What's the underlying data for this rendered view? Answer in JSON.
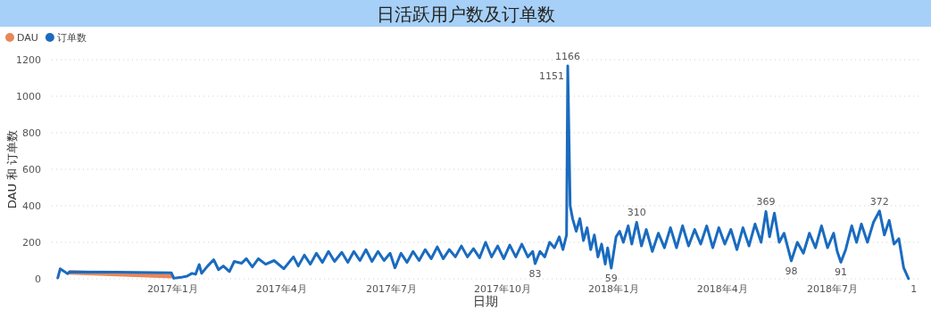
{
  "chart_data": {
    "type": "line",
    "title": "日活跃用户数及订单数",
    "xlabel": "日期",
    "ylabel": "DAU 和 订单数",
    "legend": "top left",
    "grid": "y",
    "xlim": [
      "2016-09-23",
      "2018-09-11"
    ],
    "ylim": [
      0,
      1200
    ],
    "xticks": [
      {
        "value": "2017-01-01",
        "label": "2017年1月"
      },
      {
        "value": "2017-04-01",
        "label": "2017年4月"
      },
      {
        "value": "2017-07-01",
        "label": "2017年7月"
      },
      {
        "value": "2017-10-01",
        "label": "2017年10月"
      },
      {
        "value": "2018-01-01",
        "label": "2018年1月"
      },
      {
        "value": "2018-04-01",
        "label": "2018年4月"
      },
      {
        "value": "2018-07-01",
        "label": "2018年7月"
      }
    ],
    "yticks": [
      0,
      200,
      400,
      600,
      800,
      1000,
      1200
    ],
    "series": [
      {
        "name": "DAU",
        "color": "#e8875a",
        "x": [
          "2016-10-08",
          "2016-12-31"
        ],
        "values": [
          35,
          15
        ]
      },
      {
        "name": "订单数",
        "color": "#1a6bbf",
        "x": [
          "2016-09-28",
          "2016-09-30",
          "2016-10-03",
          "2016-10-06",
          "2016-10-08",
          "2016-11-15",
          "2016-12-31",
          "2017-01-02",
          "2017-01-08",
          "2017-01-13",
          "2017-01-17",
          "2017-01-20",
          "2017-01-23",
          "2017-01-25",
          "2017-01-30",
          "2017-02-04",
          "2017-02-08",
          "2017-02-12",
          "2017-02-17",
          "2017-02-21",
          "2017-02-27",
          "2017-03-03",
          "2017-03-08",
          "2017-03-13",
          "2017-03-19",
          "2017-03-26",
          "2017-04-03",
          "2017-04-11",
          "2017-04-15",
          "2017-04-20",
          "2017-04-25",
          "2017-04-30",
          "2017-05-05",
          "2017-05-10",
          "2017-05-15",
          "2017-05-21",
          "2017-05-26",
          "2017-05-31",
          "2017-06-05",
          "2017-06-10",
          "2017-06-15",
          "2017-06-20",
          "2017-06-25",
          "2017-06-30",
          "2017-07-04",
          "2017-07-09",
          "2017-07-14",
          "2017-07-19",
          "2017-07-24",
          "2017-07-29",
          "2017-08-03",
          "2017-08-08",
          "2017-08-13",
          "2017-08-18",
          "2017-08-23",
          "2017-08-28",
          "2017-09-02",
          "2017-09-07",
          "2017-09-12",
          "2017-09-17",
          "2017-09-22",
          "2017-09-27",
          "2017-10-02",
          "2017-10-07",
          "2017-10-12",
          "2017-10-17",
          "2017-10-22",
          "2017-10-26",
          "2017-10-28",
          "2017-11-01",
          "2017-11-05",
          "2017-11-09",
          "2017-11-13",
          "2017-11-17",
          "2017-11-20",
          "2017-11-23",
          "2017-11-24",
          "2017-11-26",
          "2017-11-28",
          "2017-12-01",
          "2017-12-04",
          "2017-12-07",
          "2017-12-10",
          "2017-12-13",
          "2017-12-16",
          "2017-12-19",
          "2017-12-22",
          "2017-12-25",
          "2017-12-27",
          "2017-12-30",
          "2018-01-03",
          "2018-01-06",
          "2018-01-09",
          "2018-01-13",
          "2018-01-16",
          "2018-01-20",
          "2018-01-24",
          "2018-01-28",
          "2018-02-02",
          "2018-02-07",
          "2018-02-12",
          "2018-02-17",
          "2018-02-22",
          "2018-02-27",
          "2018-03-04",
          "2018-03-09",
          "2018-03-14",
          "2018-03-19",
          "2018-03-24",
          "2018-03-29",
          "2018-04-03",
          "2018-04-08",
          "2018-04-13",
          "2018-04-18",
          "2018-04-23",
          "2018-04-28",
          "2018-05-03",
          "2018-05-07",
          "2018-05-10",
          "2018-05-14",
          "2018-05-18",
          "2018-05-22",
          "2018-05-28",
          "2018-06-02",
          "2018-06-07",
          "2018-06-12",
          "2018-06-17",
          "2018-06-22",
          "2018-06-27",
          "2018-07-02",
          "2018-07-05",
          "2018-07-08",
          "2018-07-12",
          "2018-07-17",
          "2018-07-21",
          "2018-07-25",
          "2018-07-30",
          "2018-08-04",
          "2018-08-09",
          "2018-08-13",
          "2018-08-17",
          "2018-08-21",
          "2018-08-25",
          "2018-08-29",
          "2018-09-02"
        ],
        "values": [
          5,
          55,
          42,
          28,
          38,
          36,
          33,
          3,
          8,
          15,
          30,
          25,
          78,
          30,
          70,
          105,
          50,
          70,
          40,
          95,
          85,
          110,
          65,
          110,
          80,
          100,
          55,
          120,
          70,
          130,
          80,
          140,
          90,
          150,
          95,
          145,
          90,
          150,
          100,
          160,
          95,
          150,
          100,
          140,
          60,
          140,
          90,
          150,
          100,
          160,
          110,
          175,
          110,
          160,
          120,
          180,
          120,
          165,
          115,
          200,
          120,
          180,
          110,
          185,
          120,
          190,
          120,
          150,
          83,
          150,
          120,
          200,
          170,
          230,
          160,
          240,
          1166,
          400,
          330,
          260,
          330,
          210,
          280,
          160,
          240,
          120,
          190,
          80,
          170,
          59,
          230,
          260,
          200,
          290,
          190,
          310,
          180,
          270,
          150,
          250,
          170,
          280,
          170,
          290,
          180,
          270,
          190,
          290,
          170,
          280,
          190,
          270,
          160,
          280,
          180,
          300,
          200,
          369,
          230,
          360,
          200,
          250,
          98,
          200,
          140,
          250,
          170,
          290,
          170,
          250,
          150,
          91,
          160,
          290,
          200,
          300,
          200,
          310,
          372,
          240,
          320,
          190,
          220,
          60,
          1
        ],
        "value_labels": [
          null,
          null,
          null,
          null,
          null,
          null,
          null,
          null,
          null,
          null,
          null,
          null,
          null,
          null,
          null,
          null,
          null,
          null,
          null,
          null,
          null,
          null,
          null,
          null,
          null,
          null,
          null,
          null,
          null,
          null,
          null,
          null,
          null,
          null,
          null,
          null,
          null,
          null,
          null,
          null,
          null,
          null,
          null,
          null,
          null,
          null,
          null,
          null,
          null,
          null,
          null,
          null,
          null,
          null,
          null,
          null,
          null,
          null,
          null,
          null,
          null,
          null,
          null,
          null,
          null,
          null,
          null,
          null,
          "83",
          null,
          null,
          null,
          null,
          null,
          null,
          null,
          "1166",
          null,
          null,
          null,
          null,
          null,
          null,
          null,
          null,
          null,
          null,
          null,
          null,
          "59",
          null,
          null,
          null,
          null,
          null,
          "310",
          null,
          null,
          null,
          null,
          null,
          null,
          null,
          null,
          null,
          null,
          null,
          null,
          null,
          null,
          null,
          null,
          null,
          null,
          null,
          null,
          null,
          "369",
          null,
          null,
          null,
          null,
          "98",
          null,
          null,
          null,
          null,
          null,
          null,
          null,
          null,
          "91",
          null,
          null,
          null,
          null,
          null,
          null,
          "372",
          null,
          null,
          null,
          null,
          null,
          "1"
        ]
      }
    ],
    "annotations": [
      {
        "text": "1151",
        "x": "2017-11-24",
        "y": 1151
      }
    ]
  }
}
